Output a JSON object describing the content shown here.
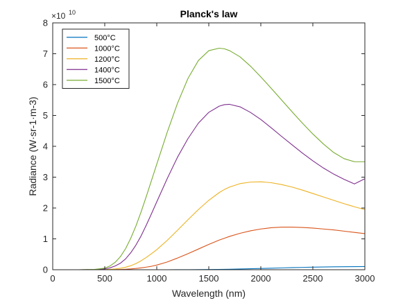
{
  "chart_data": {
    "type": "line",
    "title": "Planck's law",
    "xlabel": "Wavelength (nm)",
    "ylabel": "Radiance (W·sr-1·m-3)",
    "y_exponent_label": "×10",
    "y_exponent_power": "10",
    "y_scale": 10000000000.0,
    "xlim": [
      0,
      3000
    ],
    "ylim": [
      0,
      8
    ],
    "x_ticks": [
      0,
      500,
      1000,
      1500,
      2000,
      2500,
      3000
    ],
    "y_ticks": [
      0,
      1,
      2,
      3,
      4,
      5,
      6,
      7,
      8
    ],
    "x_tick_labels": [
      "0",
      "500",
      "1000",
      "1500",
      "2000",
      "2500",
      "3000"
    ],
    "y_tick_labels": [
      "0",
      "1",
      "2",
      "3",
      "4",
      "5",
      "6",
      "7",
      "8"
    ],
    "grid": false,
    "legend_position": "top-left",
    "x": [
      0,
      250,
      400,
      500,
      550,
      600,
      650,
      700,
      750,
      800,
      850,
      900,
      950,
      1000,
      1100,
      1200,
      1300,
      1400,
      1500,
      1600,
      1650,
      1700,
      1800,
      1900,
      2000,
      2100,
      2200,
      2300,
      2400,
      2500,
      2600,
      2700,
      2800,
      2900,
      3000
    ],
    "series": [
      {
        "name": "500°C",
        "color": "#0072BD",
        "values": [
          0,
          0,
          0,
          0,
          0,
          0,
          0,
          0,
          0,
          0,
          0,
          0,
          0,
          0,
          0,
          0.001,
          0.002,
          0.004,
          0.007,
          0.011,
          0.014,
          0.017,
          0.024,
          0.032,
          0.041,
          0.05,
          0.059,
          0.068,
          0.076,
          0.083,
          0.089,
          0.094,
          0.098,
          0.1,
          0.102
        ]
      },
      {
        "name": "1000°C",
        "color": "#D95319",
        "values": [
          0,
          0,
          0,
          0.001,
          0.002,
          0.004,
          0.008,
          0.015,
          0.026,
          0.041,
          0.06,
          0.084,
          0.112,
          0.15,
          0.25,
          0.38,
          0.52,
          0.67,
          0.82,
          0.96,
          1.02,
          1.08,
          1.18,
          1.26,
          1.32,
          1.36,
          1.38,
          1.38,
          1.37,
          1.35,
          1.32,
          1.29,
          1.25,
          1.21,
          1.17
        ]
      },
      {
        "name": "1200°C",
        "color": "#EDB120",
        "values": [
          0,
          0,
          0.001,
          0.005,
          0.012,
          0.025,
          0.047,
          0.08,
          0.13,
          0.2,
          0.29,
          0.4,
          0.52,
          0.65,
          0.95,
          1.28,
          1.62,
          1.95,
          2.25,
          2.5,
          2.6,
          2.68,
          2.79,
          2.84,
          2.85,
          2.82,
          2.76,
          2.68,
          2.58,
          2.47,
          2.36,
          2.25,
          2.14,
          2.04,
          1.95
        ]
      },
      {
        "name": "1400°C",
        "color": "#7E2F8E",
        "values": [
          0,
          0,
          0.005,
          0.025,
          0.06,
          0.12,
          0.21,
          0.35,
          0.55,
          0.8,
          1.1,
          1.45,
          1.82,
          2.2,
          2.95,
          3.65,
          4.25,
          4.75,
          5.1,
          5.3,
          5.35,
          5.36,
          5.28,
          5.1,
          4.87,
          4.6,
          4.32,
          4.05,
          3.78,
          3.53,
          3.3,
          3.1,
          2.93,
          2.78,
          2.95
        ]
      },
      {
        "name": "1500°C",
        "color": "#77AC30",
        "values": [
          0,
          0,
          0.01,
          0.05,
          0.12,
          0.24,
          0.42,
          0.68,
          1.02,
          1.42,
          1.88,
          2.38,
          2.9,
          3.42,
          4.45,
          5.4,
          6.2,
          6.78,
          7.1,
          7.18,
          7.16,
          7.1,
          6.9,
          6.6,
          6.25,
          5.88,
          5.5,
          5.12,
          4.75,
          4.4,
          4.08,
          3.8,
          3.6,
          3.5,
          3.5
        ]
      }
    ]
  }
}
